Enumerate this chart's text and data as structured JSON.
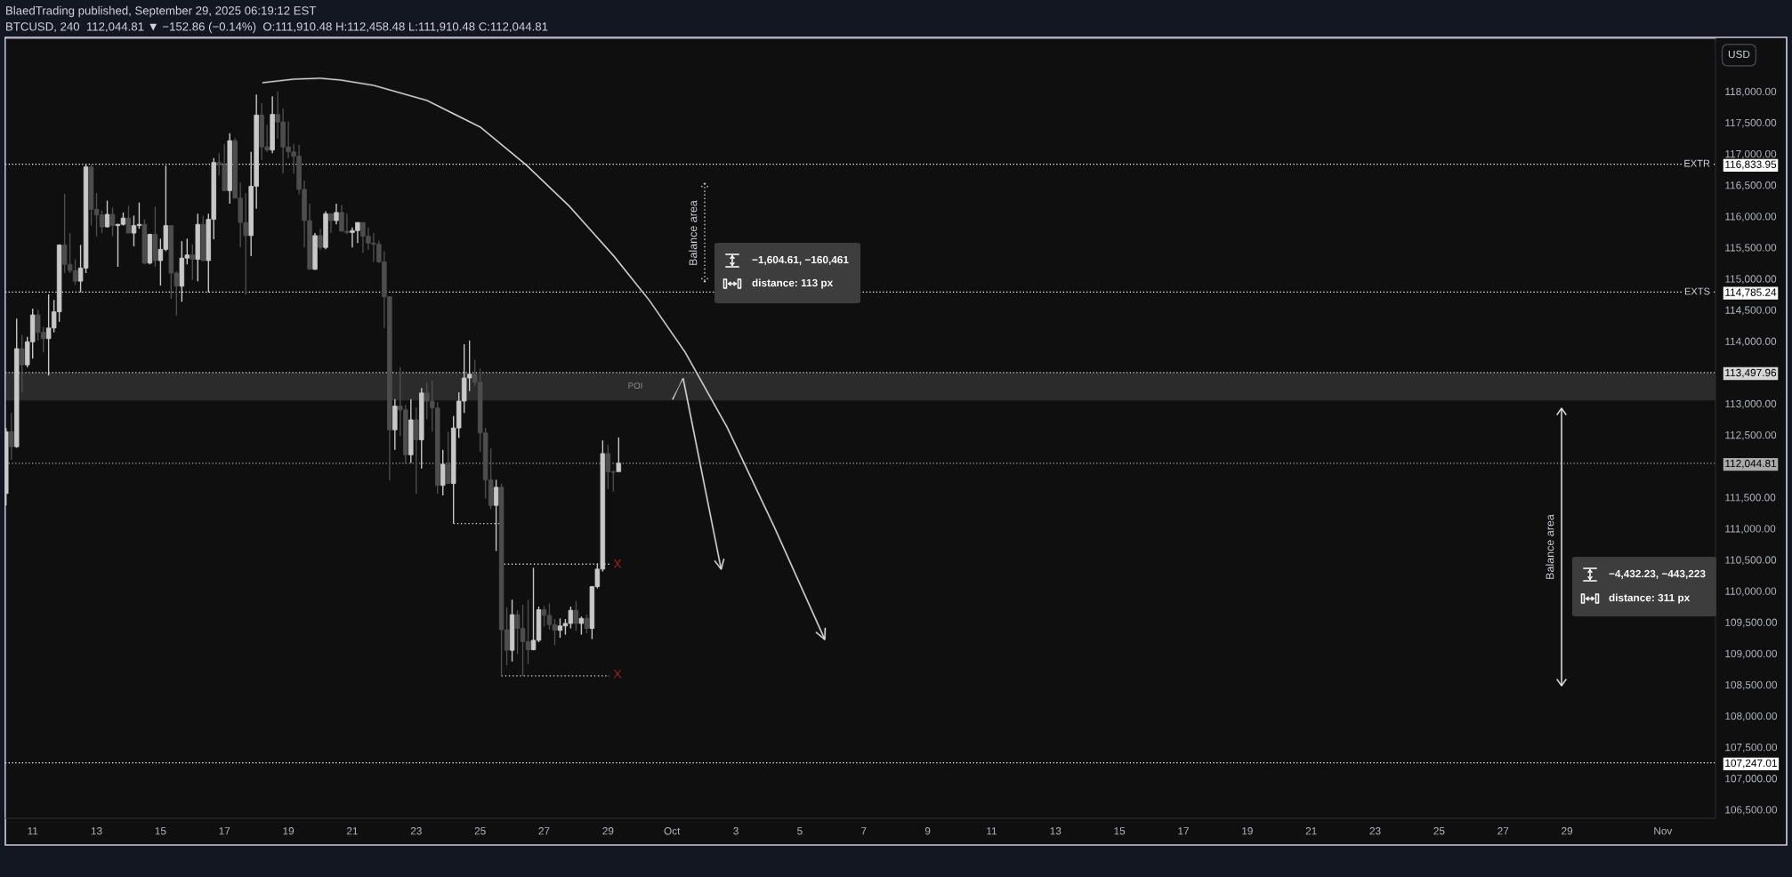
{
  "chart_data": {
    "type": "candlestick",
    "title": "BlaedTrading published, September 29, 2025 06:19:12 EST",
    "subtitle": "BTCUSD, 240  112,044.81 ▼ −152.86 (−0.14%)  O:111,910.48 H:112,458.48 L:111,910.48 C:112,044.81",
    "ylabel": "USD",
    "x": [
      "2025-09-10T04:00",
      "2025-09-10T08:00",
      "2025-09-10T12:00",
      "2025-09-10T16:00",
      "2025-09-10T20:00",
      "2025-09-11T00:00",
      "2025-09-11T04:00",
      "2025-09-11T08:00",
      "2025-09-11T12:00",
      "2025-09-11T16:00",
      "2025-09-11T20:00",
      "2025-09-12T00:00",
      "2025-09-12T04:00",
      "2025-09-12T08:00",
      "2025-09-12T12:00",
      "2025-09-12T16:00",
      "2025-09-12T20:00",
      "2025-09-13T00:00",
      "2025-09-13T04:00",
      "2025-09-13T08:00",
      "2025-09-13T12:00",
      "2025-09-13T16:00",
      "2025-09-13T20:00",
      "2025-09-14T00:00",
      "2025-09-14T04:00",
      "2025-09-14T08:00",
      "2025-09-14T12:00",
      "2025-09-14T16:00",
      "2025-09-14T20:00",
      "2025-09-15T00:00",
      "2025-09-15T04:00",
      "2025-09-15T08:00",
      "2025-09-15T12:00",
      "2025-09-15T16:00",
      "2025-09-15T20:00",
      "2025-09-16T00:00",
      "2025-09-16T04:00",
      "2025-09-16T08:00",
      "2025-09-16T12:00",
      "2025-09-16T16:00",
      "2025-09-16T20:00",
      "2025-09-17T00:00",
      "2025-09-17T04:00",
      "2025-09-17T08:00",
      "2025-09-17T12:00",
      "2025-09-17T16:00",
      "2025-09-17T20:00",
      "2025-09-18T00:00",
      "2025-09-18T04:00",
      "2025-09-18T08:00",
      "2025-09-18T12:00",
      "2025-09-18T16:00",
      "2025-09-18T20:00",
      "2025-09-19T00:00",
      "2025-09-19T04:00",
      "2025-09-19T08:00",
      "2025-09-19T12:00",
      "2025-09-19T16:00",
      "2025-09-19T20:00",
      "2025-09-20T00:00",
      "2025-09-20T04:00",
      "2025-09-20T08:00",
      "2025-09-20T12:00",
      "2025-09-20T16:00",
      "2025-09-20T20:00",
      "2025-09-21T00:00",
      "2025-09-21T04:00",
      "2025-09-21T08:00",
      "2025-09-21T12:00",
      "2025-09-21T16:00",
      "2025-09-21T20:00",
      "2025-09-22T00:00",
      "2025-09-22T04:00",
      "2025-09-22T08:00",
      "2025-09-22T12:00",
      "2025-09-22T16:00",
      "2025-09-22T20:00",
      "2025-09-23T00:00",
      "2025-09-23T04:00",
      "2025-09-23T08:00",
      "2025-09-23T12:00",
      "2025-09-23T16:00",
      "2025-09-23T20:00",
      "2025-09-24T00:00",
      "2025-09-24T04:00",
      "2025-09-24T08:00",
      "2025-09-24T12:00",
      "2025-09-24T16:00",
      "2025-09-24T20:00",
      "2025-09-25T00:00",
      "2025-09-25T04:00",
      "2025-09-25T08:00",
      "2025-09-25T12:00",
      "2025-09-25T16:00",
      "2025-09-25T20:00",
      "2025-09-26T00:00",
      "2025-09-26T04:00",
      "2025-09-26T08:00",
      "2025-09-26T12:00",
      "2025-09-26T16:00",
      "2025-09-26T20:00",
      "2025-09-27T00:00",
      "2025-09-27T04:00",
      "2025-09-27T08:00",
      "2025-09-27T12:00",
      "2025-09-27T16:00",
      "2025-09-27T20:00",
      "2025-09-28T00:00",
      "2025-09-28T04:00",
      "2025-09-28T08:00",
      "2025-09-28T12:00",
      "2025-09-28T16:00",
      "2025-09-28T20:00",
      "2025-09-29T00:00",
      "2025-09-29T04:00",
      "2025-09-29T08:00"
    ],
    "ohlc": [
      [
        111560,
        112610,
        111370,
        112550
      ],
      [
        112550,
        112850,
        112100,
        112310
      ],
      [
        112310,
        114360,
        112290,
        113880
      ],
      [
        113880,
        114100,
        113180,
        113620
      ],
      [
        113620,
        114070,
        113580,
        113990
      ],
      [
        113990,
        114520,
        113720,
        114420
      ],
      [
        114420,
        114500,
        114010,
        114140
      ],
      [
        114140,
        114230,
        113820,
        114040
      ],
      [
        114040,
        114750,
        113450,
        114210
      ],
      [
        114210,
        114660,
        114140,
        114470
      ],
      [
        114470,
        115550,
        114310,
        115540
      ],
      [
        115540,
        116360,
        115090,
        115230
      ],
      [
        115230,
        115730,
        115090,
        115130
      ],
      [
        115130,
        115310,
        114900,
        114960
      ],
      [
        114960,
        115540,
        114780,
        115170
      ],
      [
        115170,
        116840,
        115090,
        116790
      ],
      [
        116790,
        116830,
        115850,
        116110
      ],
      [
        116110,
        116370,
        115680,
        116020
      ],
      [
        116020,
        116090,
        115730,
        115830
      ],
      [
        115830,
        116250,
        115820,
        116030
      ],
      [
        116030,
        116140,
        115680,
        115850
      ],
      [
        115850,
        115880,
        115190,
        115870
      ],
      [
        115870,
        116060,
        115850,
        115970
      ],
      [
        115970,
        116170,
        115730,
        115730
      ],
      [
        115730,
        116010,
        115520,
        115850
      ],
      [
        115850,
        116220,
        115800,
        115870
      ],
      [
        115870,
        115950,
        115230,
        115250
      ],
      [
        115250,
        115720,
        115230,
        115710
      ],
      [
        115710,
        116150,
        115190,
        115290
      ],
      [
        115290,
        115640,
        114890,
        115470
      ],
      [
        115470,
        116810,
        115440,
        115850
      ],
      [
        115850,
        115850,
        114680,
        115090
      ],
      [
        115090,
        115120,
        114410,
        114880
      ],
      [
        114880,
        115600,
        114630,
        115330
      ],
      [
        115330,
        115640,
        115230,
        115380
      ],
      [
        115380,
        115550,
        114980,
        115310
      ],
      [
        115310,
        116040,
        114960,
        115870
      ],
      [
        115870,
        116010,
        115280,
        115290
      ],
      [
        115290,
        116040,
        114780,
        115950
      ],
      [
        115950,
        116930,
        115630,
        116860
      ],
      [
        116860,
        117010,
        116650,
        116820
      ],
      [
        116820,
        117160,
        116400,
        116410
      ],
      [
        116410,
        117330,
        116200,
        117210
      ],
      [
        117210,
        117250,
        116290,
        116290
      ],
      [
        116290,
        116540,
        115500,
        115900
      ],
      [
        115900,
        116370,
        114740,
        115690
      ],
      [
        115690,
        117030,
        115360,
        116480
      ],
      [
        116480,
        117950,
        116120,
        117620
      ],
      [
        117620,
        117810,
        116900,
        117110
      ],
      [
        117110,
        117460,
        117030,
        117060
      ],
      [
        117060,
        117920,
        117010,
        117630
      ],
      [
        117630,
        118000,
        117240,
        117510
      ],
      [
        117510,
        117730,
        116690,
        117110
      ],
      [
        117110,
        117520,
        116930,
        117030
      ],
      [
        117030,
        117160,
        116680,
        116960
      ],
      [
        116960,
        117140,
        116350,
        116430
      ],
      [
        116430,
        116570,
        115500,
        115930
      ],
      [
        115930,
        116200,
        115150,
        115150
      ],
      [
        115150,
        115730,
        115140,
        115690
      ],
      [
        115690,
        115800,
        115460,
        115500
      ],
      [
        115500,
        116080,
        115470,
        116040
      ],
      [
        116040,
        116040,
        115730,
        115930
      ],
      [
        115930,
        116200,
        115870,
        116060
      ],
      [
        116060,
        116180,
        115760,
        115760
      ],
      [
        115760,
        116040,
        115710,
        115740
      ],
      [
        115740,
        115820,
        115500,
        115770
      ],
      [
        115770,
        115900,
        115570,
        115900
      ],
      [
        115900,
        115900,
        115410,
        115680
      ],
      [
        115680,
        115820,
        115460,
        115570
      ],
      [
        115570,
        115730,
        115270,
        115550
      ],
      [
        115550,
        115610,
        115250,
        115270
      ],
      [
        115270,
        115440,
        114210,
        114710
      ],
      [
        114710,
        114720,
        111770,
        112580
      ],
      [
        112580,
        113070,
        112260,
        112960
      ],
      [
        112960,
        113580,
        112480,
        112900
      ],
      [
        112900,
        112980,
        112030,
        112180
      ],
      [
        112180,
        113070,
        112050,
        112740
      ],
      [
        112740,
        112940,
        111560,
        112420
      ],
      [
        112420,
        113250,
        111960,
        113170
      ],
      [
        113170,
        113340,
        112750,
        113040
      ],
      [
        113040,
        113370,
        112550,
        112930
      ],
      [
        112930,
        113020,
        111560,
        111690
      ],
      [
        111690,
        112260,
        111530,
        112030
      ],
      [
        112030,
        112550,
        111720,
        111720
      ],
      [
        111720,
        112800,
        111080,
        112610
      ],
      [
        112610,
        113180,
        112450,
        113040
      ],
      [
        113040,
        113950,
        112850,
        113410
      ],
      [
        113410,
        114010,
        113200,
        113470
      ],
      [
        113470,
        113700,
        113280,
        113340
      ],
      [
        113340,
        113560,
        112230,
        112530
      ],
      [
        112530,
        112610,
        111480,
        111780
      ],
      [
        111780,
        112280,
        111310,
        111370
      ],
      [
        111370,
        111780,
        110640,
        111660
      ],
      [
        111660,
        111720,
        108640,
        109380
      ],
      [
        109380,
        109740,
        108810,
        109050
      ],
      [
        109050,
        109860,
        108870,
        109620
      ],
      [
        109620,
        109690,
        108990,
        109400
      ],
      [
        109400,
        109780,
        108640,
        109190
      ],
      [
        109190,
        109860,
        108830,
        109060
      ],
      [
        109060,
        110370,
        109050,
        109210
      ],
      [
        109210,
        109750,
        109180,
        109700
      ],
      [
        109700,
        109760,
        109430,
        109610
      ],
      [
        109610,
        109800,
        109380,
        109460
      ],
      [
        109460,
        109550,
        109130,
        109370
      ],
      [
        109370,
        109560,
        109250,
        109440
      ],
      [
        109440,
        109550,
        109300,
        109480
      ],
      [
        109480,
        109750,
        109400,
        109690
      ],
      [
        109690,
        109840,
        109360,
        109480
      ],
      [
        109480,
        109590,
        109300,
        109560
      ],
      [
        109560,
        109620,
        109320,
        109400
      ],
      [
        109400,
        110080,
        109230,
        110070
      ],
      [
        110070,
        110440,
        110040,
        110350
      ],
      [
        110350,
        112410,
        110310,
        112200
      ],
      [
        112200,
        112340,
        111630,
        111910
      ],
      [
        111910,
        111930,
        111590,
        111900
      ],
      [
        111910.48,
        112458.48,
        111910.48,
        112044.81
      ]
    ],
    "colors": [
      "#c8c8c8",
      "#4d4d4d",
      "#c8c8c8",
      "#4d4d4d",
      "#c8c8c8",
      "#c8c8c8",
      "#4d4d4d",
      "#4d4d4d",
      "#c8c8c8",
      "#c8c8c8",
      "#c8c8c8",
      "#4d4d4d",
      "#4d4d4d",
      "#4d4d4d",
      "#c8c8c8",
      "#c8c8c8",
      "#4d4d4d",
      "#4d4d4d",
      "#4d4d4d",
      "#c8c8c8",
      "#4d4d4d",
      "#c8c8c8",
      "#c8c8c8",
      "#4d4d4d",
      "#c8c8c8",
      "#c8c8c8",
      "#4d4d4d",
      "#c8c8c8",
      "#4d4d4d",
      "#c8c8c8",
      "#c8c8c8",
      "#4d4d4d",
      "#4d4d4d",
      "#c8c8c8",
      "#c8c8c8",
      "#4d4d4d",
      "#c8c8c8",
      "#4d4d4d",
      "#c8c8c8",
      "#c8c8c8",
      "#4d4d4d",
      "#4d4d4d",
      "#c8c8c8",
      "#4d4d4d",
      "#4d4d4d",
      "#4d4d4d",
      "#c8c8c8",
      "#c8c8c8",
      "#4d4d4d",
      "#4d4d4d",
      "#c8c8c8",
      "#4d4d4d",
      "#4d4d4d",
      "#4d4d4d",
      "#4d4d4d",
      "#4d4d4d",
      "#4d4d4d",
      "#4d4d4d",
      "#c8c8c8",
      "#4d4d4d",
      "#c8c8c8",
      "#4d4d4d",
      "#c8c8c8",
      "#4d4d4d",
      "#4d4d4d",
      "#c8c8c8",
      "#c8c8c8",
      "#4d4d4d",
      "#4d4d4d",
      "#4d4d4d",
      "#4d4d4d",
      "#4d4d4d",
      "#4d4d4d",
      "#c8c8c8",
      "#4d4d4d",
      "#4d4d4d",
      "#c8c8c8",
      "#4d4d4d",
      "#c8c8c8",
      "#4d4d4d",
      "#4d4d4d",
      "#4d4d4d",
      "#c8c8c8",
      "#4d4d4d",
      "#c8c8c8",
      "#c8c8c8",
      "#c8c8c8",
      "#c8c8c8",
      "#4d4d4d",
      "#4d4d4d",
      "#4d4d4d",
      "#4d4d4d",
      "#c8c8c8",
      "#4d4d4d",
      "#4d4d4d",
      "#c8c8c8",
      "#4d4d4d",
      "#4d4d4d",
      "#4d4d4d",
      "#c8c8c8",
      "#c8c8c8",
      "#4d4d4d",
      "#4d4d4d",
      "#4d4d4d",
      "#c8c8c8",
      "#c8c8c8",
      "#c8c8c8",
      "#4d4d4d",
      "#c8c8c8",
      "#4d4d4d",
      "#c8c8c8",
      "#c8c8c8",
      "#c8c8c8",
      "#4d4d4d",
      "#4d4d4d",
      "#c8c8c8"
    ],
    "series": [
      {
        "type": "line",
        "x": [
          "2025-09-24T04:00",
          "2025-09-25T15:00"
        ],
        "values": [
          111080,
          111080
        ],
        "color": "#d1d4dc",
        "line_style": "dotted"
      },
      {
        "type": "line",
        "x": [
          "2025-09-25T18:00",
          "2025-09-29T01:00"
        ],
        "values": [
          110430,
          110430
        ],
        "color": "#d1d4dc",
        "line_style": "dotted"
      },
      {
        "type": "line",
        "x": [
          "2025-09-25T16:00",
          "2025-09-29T01:00"
        ],
        "values": [
          108640,
          108640
        ],
        "color": "#d1d4dc",
        "line_style": "dotted"
      }
    ],
    "xlim": [
      "2025-09-10T03:30",
      "2025-11-02T15:30"
    ],
    "ylim": [
      106360,
      118850
    ],
    "xticks": [
      {
        "value": "2025-09-11",
        "label": "11"
      },
      {
        "value": "2025-09-13",
        "label": "13"
      },
      {
        "value": "2025-09-15",
        "label": "15"
      },
      {
        "value": "2025-09-17",
        "label": "17"
      },
      {
        "value": "2025-09-19",
        "label": "19"
      },
      {
        "value": "2025-09-21",
        "label": "21"
      },
      {
        "value": "2025-09-23",
        "label": "23"
      },
      {
        "value": "2025-09-25",
        "label": "25"
      },
      {
        "value": "2025-09-27",
        "label": "27"
      },
      {
        "value": "2025-09-29",
        "label": "29"
      },
      {
        "value": "2025-10-01",
        "label": "Oct"
      },
      {
        "value": "2025-10-03",
        "label": "3"
      },
      {
        "value": "2025-10-05",
        "label": "5"
      },
      {
        "value": "2025-10-07",
        "label": "7"
      },
      {
        "value": "2025-10-09",
        "label": "9"
      },
      {
        "value": "2025-10-11",
        "label": "11"
      },
      {
        "value": "2025-10-13",
        "label": "13"
      },
      {
        "value": "2025-10-15",
        "label": "15"
      },
      {
        "value": "2025-10-17",
        "label": "17"
      },
      {
        "value": "2025-10-19",
        "label": "19"
      },
      {
        "value": "2025-10-21",
        "label": "21"
      },
      {
        "value": "2025-10-23",
        "label": "23"
      },
      {
        "value": "2025-10-25",
        "label": "25"
      },
      {
        "value": "2025-10-27",
        "label": "27"
      },
      {
        "value": "2025-10-29",
        "label": "29"
      },
      {
        "value": "2025-11-01",
        "label": "Nov"
      }
    ],
    "yticks": [
      {
        "value": 106500,
        "label": "106,500.00"
      },
      {
        "value": 107000,
        "label": "107,000.00"
      },
      {
        "value": 107247.01,
        "label": "107,247.01"
      },
      {
        "value": 107500,
        "label": "107,500.00"
      },
      {
        "value": 108000,
        "label": "108,000.00"
      },
      {
        "value": 108500,
        "label": "108,500.00"
      },
      {
        "value": 109000,
        "label": "109,000.00"
      },
      {
        "value": 109500,
        "label": "109,500.00"
      },
      {
        "value": 110000,
        "label": "110,000.00"
      },
      {
        "value": 110500,
        "label": "110,500.00"
      },
      {
        "value": 111000,
        "label": "111,000.00"
      },
      {
        "value": 111500,
        "label": "111,500.00"
      },
      {
        "value": 112044.81,
        "label": "112,044.81"
      },
      {
        "value": 112500,
        "label": "112,500.00"
      },
      {
        "value": 113000,
        "label": "113,000.00"
      },
      {
        "value": 113497.96,
        "label": "113,497.96"
      },
      {
        "value": 114000,
        "label": "114,000.00"
      },
      {
        "value": 114500,
        "label": "114,500.00"
      },
      {
        "value": 114785.24,
        "label": "114,785.24"
      },
      {
        "value": 115000,
        "label": "115,000.00"
      },
      {
        "value": 115500,
        "label": "115,500.00"
      },
      {
        "value": 116000,
        "label": "116,000.00"
      },
      {
        "value": 116500,
        "label": "116,500.00"
      },
      {
        "value": 116833.95,
        "label": "116,833.95"
      },
      {
        "value": 117000,
        "label": "117,000.00"
      },
      {
        "value": 117500,
        "label": "117,500.00"
      },
      {
        "value": 118000,
        "label": "118,000.00"
      }
    ],
    "ref_lines": [
      {
        "axis": "y",
        "value": 116833.95,
        "label": "EXTR",
        "color": "#ffffff",
        "line_style": "dotted"
      },
      {
        "axis": "y",
        "value": 114785.24,
        "label": "EXTS",
        "color": "#ffffff",
        "line_style": "dotted"
      },
      {
        "axis": "y",
        "value": 113497.96,
        "color": "#d6d6d6",
        "line_style": "dotted"
      },
      {
        "axis": "y",
        "value": 112044.81,
        "color": "#aaaaaa",
        "line_style": "dotted"
      },
      {
        "axis": "y",
        "value": 107247.01,
        "color": "#ffffff",
        "line_style": "dotted"
      }
    ],
    "bands": [
      {
        "axis": "y",
        "from": 113050,
        "to": 113500,
        "label": "POI",
        "color": "#2b2b2b"
      }
    ],
    "annotations": [
      "X",
      "X",
      "Balance area",
      "−1,604.61, −160,461",
      "distance: 113 px",
      "Balance area",
      "−4,432.23, −443,223",
      "distance: 311 px"
    ]
  }
}
